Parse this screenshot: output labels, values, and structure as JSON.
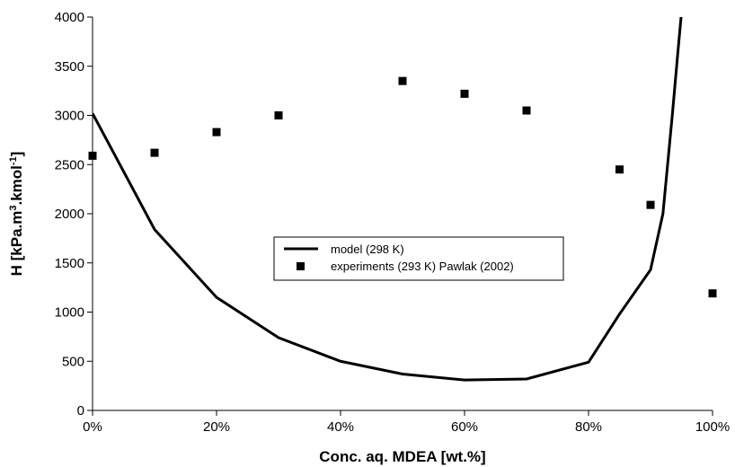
{
  "chart_data": {
    "type": "line",
    "title": "",
    "xlabel": "Conc. aq. MDEA [wt.%]",
    "ylabel_main": "H [kPa.m",
    "ylabel_sup1": "3",
    "ylabel_mid": ".kmol",
    "ylabel_sup2": "-1",
    "ylabel_end": "]",
    "xlim": [
      0,
      100
    ],
    "ylim": [
      0,
      4000
    ],
    "x_ticks": [
      0,
      20,
      40,
      60,
      80,
      100
    ],
    "x_tick_labels": [
      "0%",
      "20%",
      "40%",
      "60%",
      "80%",
      "100%"
    ],
    "y_ticks": [
      0,
      500,
      1000,
      1500,
      2000,
      2500,
      3000,
      3500,
      4000
    ],
    "y_tick_labels": [
      "0",
      "500",
      "1000",
      "1500",
      "2000",
      "2500",
      "3000",
      "3500",
      "4000"
    ],
    "grid": false,
    "legend_position": "center",
    "series": [
      {
        "name": "model (298 K)",
        "style": "line",
        "color": "#000000",
        "x": [
          0,
          10,
          20,
          30,
          40,
          50,
          60,
          70,
          80,
          85,
          90,
          92,
          93.5,
          94.5,
          95
        ],
        "y": [
          3020,
          1840,
          1150,
          740,
          500,
          370,
          310,
          320,
          490,
          980,
          1430,
          2000,
          3000,
          3700,
          4050
        ]
      },
      {
        "name": "experiments (293 K) Pawlak (2002)",
        "style": "marker",
        "color": "#000000",
        "x": [
          0,
          10,
          20,
          30,
          50,
          60,
          70,
          85,
          90,
          100
        ],
        "y": [
          2590,
          2620,
          2830,
          3000,
          3350,
          3220,
          3050,
          2450,
          2090,
          1190
        ]
      }
    ]
  }
}
